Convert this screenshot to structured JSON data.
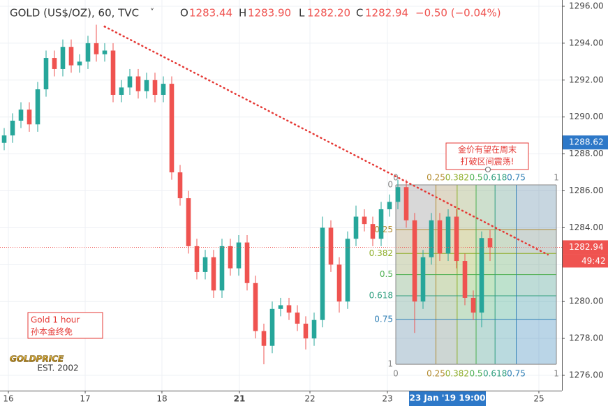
{
  "chart_data": {
    "type": "candlestick",
    "header": {
      "symbol": "GOLD (US$/OZ), 60, TVC",
      "o_label": "O",
      "h_label": "H",
      "l_label": "L",
      "c_label": "C",
      "open": "1283.44",
      "high": "1283.90",
      "low": "1282.20",
      "close": "1282.94",
      "change": "−0.50 (−0.04%)"
    },
    "up_color": "#26a69a",
    "down_color": "#ef5350",
    "ohlc": [
      [
        1288.6,
        1289.4,
        1288.2,
        1289.0
      ],
      [
        1289.0,
        1290.2,
        1288.6,
        1289.8
      ],
      [
        1289.8,
        1290.8,
        1289.4,
        1290.4
      ],
      [
        1290.4,
        1290.8,
        1289.2,
        1289.6
      ],
      [
        1289.6,
        1291.9,
        1289.2,
        1291.5
      ],
      [
        1291.5,
        1293.6,
        1291.1,
        1293.2
      ],
      [
        1293.2,
        1293.6,
        1292.2,
        1292.6
      ],
      [
        1292.6,
        1294.2,
        1292.2,
        1293.8
      ],
      [
        1293.8,
        1294.2,
        1292.4,
        1292.8
      ],
      [
        1292.8,
        1293.4,
        1292.4,
        1293.0
      ],
      [
        1293.0,
        1294.4,
        1292.6,
        1294.0
      ],
      [
        1294.0,
        1295.0,
        1293.0,
        1293.4
      ],
      [
        1293.4,
        1294.0,
        1293.0,
        1293.6
      ],
      [
        1293.6,
        1294.0,
        1290.8,
        1291.2
      ],
      [
        1291.2,
        1292.0,
        1290.8,
        1291.6
      ],
      [
        1291.6,
        1292.6,
        1291.2,
        1292.2
      ],
      [
        1292.2,
        1292.6,
        1291.0,
        1291.4
      ],
      [
        1291.4,
        1292.4,
        1291.0,
        1292.0
      ],
      [
        1292.0,
        1292.4,
        1290.8,
        1291.2
      ],
      [
        1291.2,
        1292.2,
        1290.8,
        1291.8
      ],
      [
        1291.8,
        1292.2,
        1286.6,
        1287.0
      ],
      [
        1287.0,
        1287.4,
        1285.2,
        1285.6
      ],
      [
        1285.6,
        1286.0,
        1282.6,
        1283.0
      ],
      [
        1283.0,
        1283.4,
        1281.2,
        1281.6
      ],
      [
        1281.6,
        1282.8,
        1281.2,
        1282.4
      ],
      [
        1282.4,
        1282.8,
        1280.2,
        1280.6
      ],
      [
        1280.6,
        1283.4,
        1280.2,
        1283.0
      ],
      [
        1283.0,
        1283.4,
        1281.4,
        1281.8
      ],
      [
        1281.8,
        1283.6,
        1281.4,
        1283.2
      ],
      [
        1283.2,
        1283.6,
        1280.6,
        1281.0
      ],
      [
        1281.0,
        1281.4,
        1278.0,
        1278.4
      ],
      [
        1278.4,
        1278.8,
        1276.6,
        1277.6
      ],
      [
        1277.6,
        1280.0,
        1277.2,
        1279.6
      ],
      [
        1279.6,
        1280.2,
        1279.2,
        1279.8
      ],
      [
        1279.8,
        1280.2,
        1279.0,
        1279.4
      ],
      [
        1279.4,
        1279.8,
        1278.4,
        1278.8
      ],
      [
        1278.8,
        1279.2,
        1277.4,
        1278.0
      ],
      [
        1278.0,
        1279.4,
        1277.6,
        1279.0
      ],
      [
        1279.0,
        1284.6,
        1278.6,
        1284.0
      ],
      [
        1284.0,
        1284.4,
        1281.6,
        1282.0
      ],
      [
        1282.0,
        1282.4,
        1279.4,
        1280.0
      ],
      [
        1280.0,
        1283.8,
        1279.6,
        1283.4
      ],
      [
        1283.4,
        1285.2,
        1283.0,
        1284.6
      ],
      [
        1284.6,
        1285.0,
        1283.8,
        1284.2
      ],
      [
        1284.2,
        1284.6,
        1283.0,
        1283.4
      ],
      [
        1283.4,
        1285.4,
        1283.0,
        1285.0
      ],
      [
        1285.0,
        1285.8,
        1284.6,
        1285.4
      ],
      [
        1285.4,
        1286.6,
        1285.0,
        1286.2
      ],
      [
        1286.2,
        1286.6,
        1284.0,
        1284.4
      ],
      [
        1284.4,
        1284.8,
        1278.3,
        1280.0
      ],
      [
        1280.0,
        1282.8,
        1279.6,
        1282.4
      ],
      [
        1282.4,
        1284.8,
        1282.0,
        1284.4
      ],
      [
        1284.4,
        1284.8,
        1282.2,
        1282.6
      ],
      [
        1282.6,
        1285.0,
        1282.2,
        1284.6
      ],
      [
        1284.6,
        1285.0,
        1281.8,
        1282.2
      ],
      [
        1282.2,
        1282.6,
        1279.8,
        1280.2
      ],
      [
        1280.2,
        1280.6,
        1279.0,
        1279.4
      ],
      [
        1279.4,
        1283.8,
        1278.6,
        1283.44
      ],
      [
        1283.44,
        1283.9,
        1282.2,
        1282.94
      ]
    ],
    "xlim": [
      -0.5,
      66.583
    ],
    "xticks": [
      {
        "value": 0.5,
        "label": "16"
      },
      {
        "value": 9.67,
        "label": "17"
      },
      {
        "value": 18.83,
        "label": "18"
      },
      {
        "value": 28.08,
        "label": "21"
      },
      {
        "value": 36.5,
        "label": "22"
      },
      {
        "value": 45.75,
        "label": "23"
      },
      {
        "value": 63.83,
        "label": "25"
      }
    ],
    "x_cursor_label": "23 Jan '19   19:00",
    "ylim": [
      1275.17,
      1296.34
    ],
    "yticks": [
      {
        "value": 1276,
        "label": "1276.00"
      },
      {
        "value": 1278,
        "label": "1278.00"
      },
      {
        "value": 1280,
        "label": "1280.00"
      },
      {
        "value": 1282,
        "label": "1282.00"
      },
      {
        "value": 1284,
        "label": "1284.00"
      },
      {
        "value": 1286,
        "label": "1286.00"
      },
      {
        "value": 1288,
        "label": "1288.00"
      },
      {
        "value": 1290,
        "label": "1290.00"
      },
      {
        "value": 1292,
        "label": "1292.00"
      },
      {
        "value": 1294,
        "label": "1294.00"
      },
      {
        "value": 1296,
        "label": "1296.00"
      }
    ],
    "grid": true,
    "last_price": 1282.94,
    "countdown": "49:42",
    "marker_price": 1288.62,
    "trend_line": {
      "x": [
        12,
        64.9
      ],
      "y": [
        1294.9,
        1282.54
      ],
      "color": "#e53935"
    },
    "fib": {
      "levels": [
        0,
        0.25,
        0.382,
        0.5,
        0.618,
        0.75,
        1
      ],
      "colors": [
        "#888888",
        "#b38b2e",
        "#8fae2a",
        "#4caf50",
        "#2e9e7e",
        "#2f7fb5",
        "#888888"
      ],
      "price_top": 1286.32,
      "price_bottom": 1276.6,
      "x_start": 46.75,
      "x_end": 65.92
    },
    "annotations": {
      "callout": [
        "金价有望在周末",
        "打破区间震荡!"
      ],
      "note_title": "Gold 1 hour",
      "note_sub": "孙本金终免",
      "logo": "GOLDPRICE",
      "logo_sub": "EST. 2002"
    }
  }
}
